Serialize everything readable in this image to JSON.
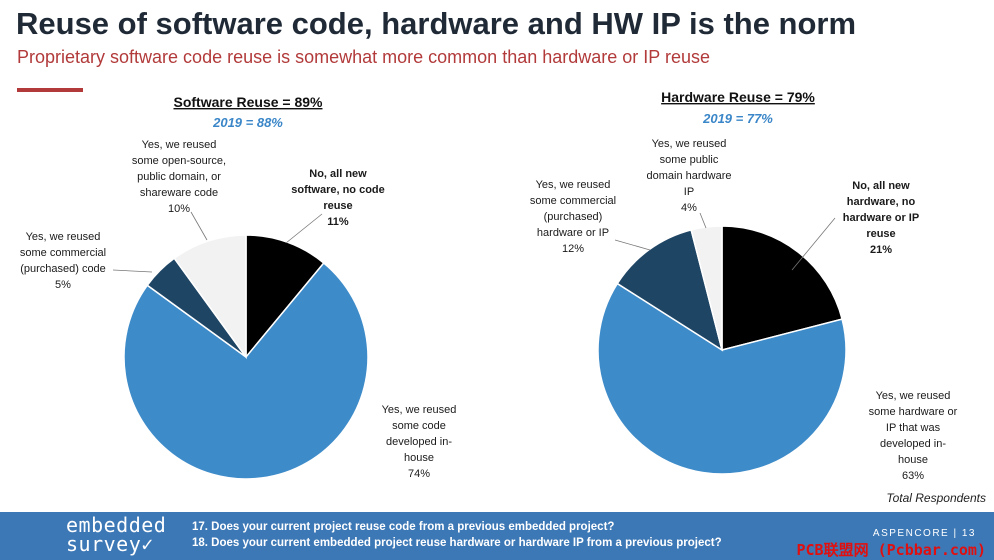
{
  "header": {
    "title": "Reuse of software code, hardware and HW IP is the norm",
    "subtitle": "Proprietary software code reuse is somewhat more common than hardware or IP reuse"
  },
  "colors": {
    "black": "#000000",
    "blue": "#3e8bc9",
    "navy": "#1f4565",
    "light": "#f2f2f2",
    "accent": "#b23a3a"
  },
  "chart_data": [
    {
      "type": "pie",
      "title": "Software Reuse = 89%",
      "subtitle": "2019 = 88%",
      "slices": [
        {
          "label_lines": [
            "No, all new",
            "software, no code",
            "reuse",
            "11%"
          ],
          "value": 11,
          "color_key": "black",
          "bold": true
        },
        {
          "label_lines": [
            "Yes, we reused",
            "some code",
            "developed in-",
            "house",
            "74%"
          ],
          "value": 74,
          "color_key": "blue",
          "bold": false
        },
        {
          "label_lines": [
            "Yes, we reused",
            "some commercial",
            "(purchased) code",
            "5%"
          ],
          "value": 5,
          "color_key": "navy",
          "bold": false
        },
        {
          "label_lines": [
            "Yes, we reused",
            "some open-source,",
            "public domain, or",
            "shareware code",
            "10%"
          ],
          "value": 10,
          "color_key": "light",
          "bold": false
        }
      ]
    },
    {
      "type": "pie",
      "title": "Hardware Reuse = 79%",
      "subtitle": "2019 = 77%",
      "slices": [
        {
          "label_lines": [
            "No, all new",
            "hardware, no",
            "hardware or IP",
            "reuse",
            "21%"
          ],
          "value": 21,
          "color_key": "black",
          "bold": true
        },
        {
          "label_lines": [
            "Yes, we reused",
            "some hardware or",
            "IP that was",
            "developed in-",
            "house",
            "63%"
          ],
          "value": 63,
          "color_key": "blue",
          "bold": false
        },
        {
          "label_lines": [
            "Yes, we reused",
            "some commercial",
            "(purchased)",
            "hardware or IP",
            "12%"
          ],
          "value": 12,
          "color_key": "navy",
          "bold": false
        },
        {
          "label_lines": [
            "Yes, we reused",
            "some public",
            "domain hardware",
            "IP",
            "4%"
          ],
          "value": 4,
          "color_key": "light",
          "bold": false
        }
      ]
    }
  ],
  "respondents_note": "Total Respondents",
  "footer": {
    "brand_line1": "embedded",
    "brand_line2": "survey✓",
    "q17": "17. Does your current project reuse code from a previous embedded project?",
    "q18": "18. Does your current embedded project reuse hardware or hardware IP from a previous project?",
    "company": "ASPENCORE | 13",
    "watermark": "PCB联盟网 (Pcbbar.com)"
  }
}
